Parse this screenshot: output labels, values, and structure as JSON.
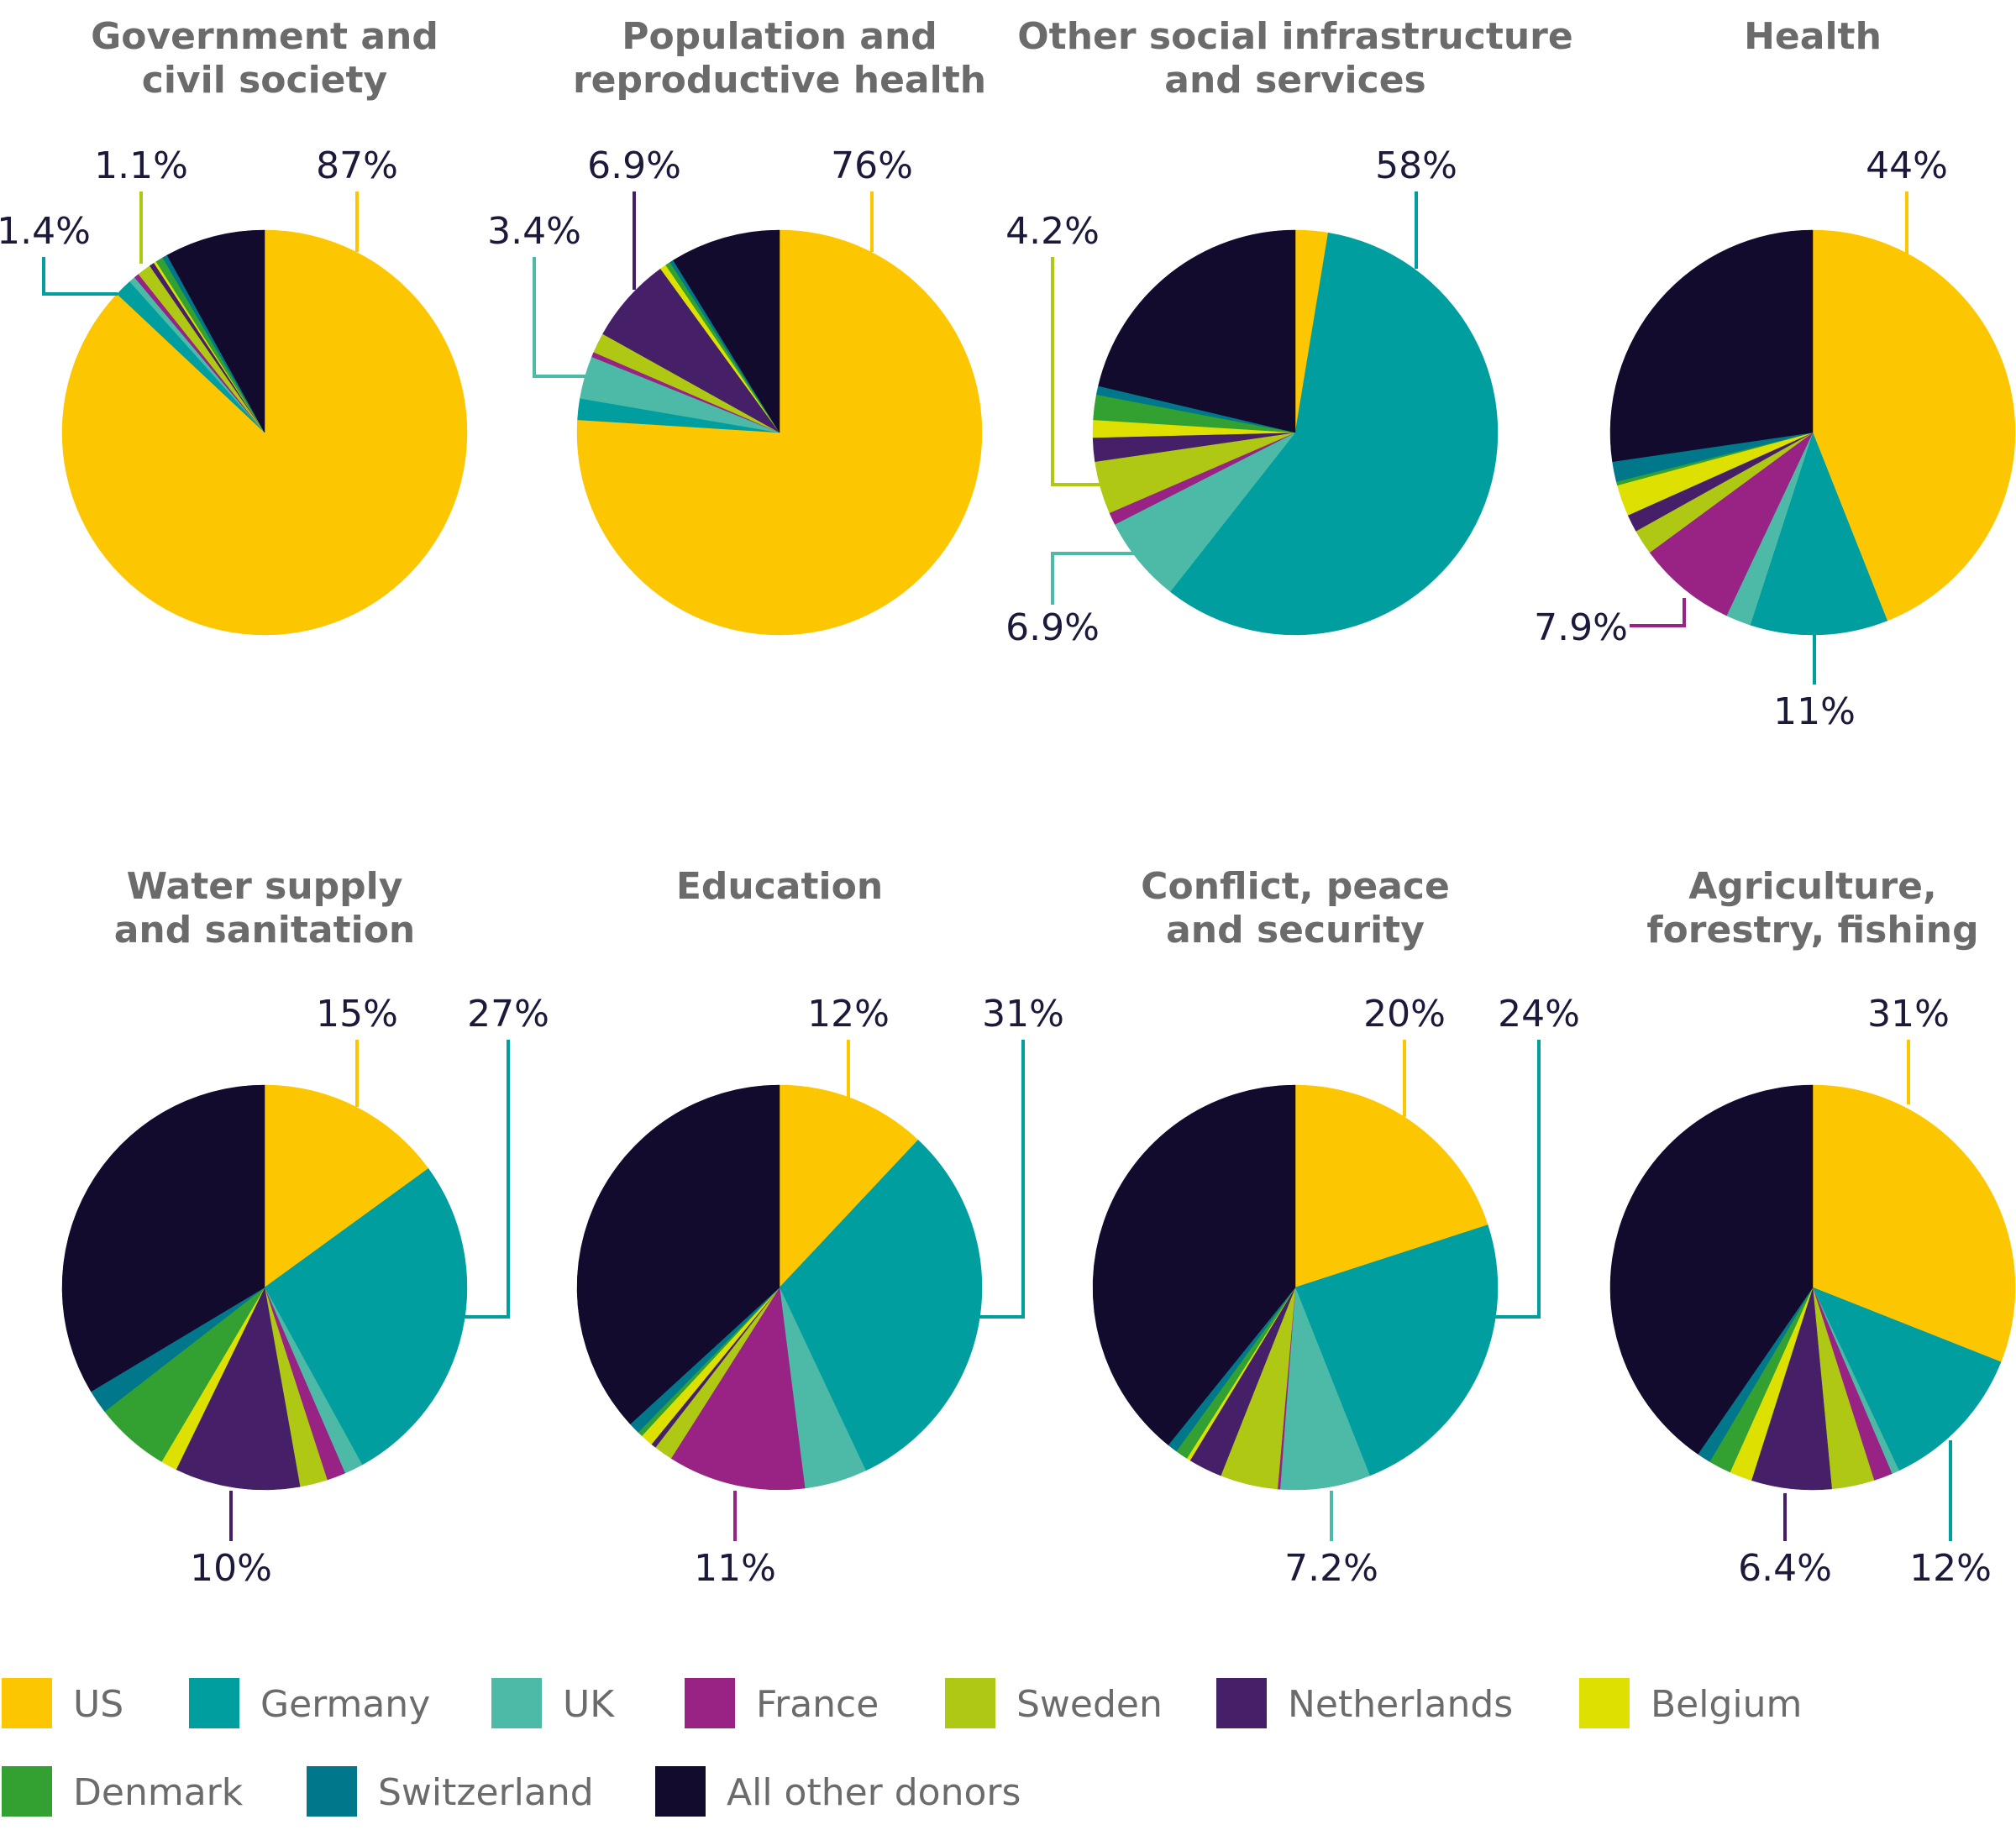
{
  "legend": [
    {
      "name": "US",
      "color": "#fcc600"
    },
    {
      "name": "Germany",
      "color": "#009e9f"
    },
    {
      "name": "UK",
      "color": "#4dbaa7"
    },
    {
      "name": "France",
      "color": "#982384"
    },
    {
      "name": "Sweden",
      "color": "#afc813"
    },
    {
      "name": "Netherlands",
      "color": "#452069"
    },
    {
      "name": "Belgium",
      "color": "#dde000"
    },
    {
      "name": "Denmark",
      "color": "#32a132"
    },
    {
      "name": "Switzerland",
      "color": "#00778a"
    },
    {
      "name": "All other donors",
      "color": "#120b2e"
    }
  ],
  "chart_data": [
    {
      "type": "pie",
      "title": [
        "Government and",
        "civil society"
      ],
      "slices": [
        {
          "donor": "US",
          "value": 87,
          "label": "87%"
        },
        {
          "donor": "Germany",
          "value": 1.4,
          "label": "1.4%"
        },
        {
          "donor": "UK",
          "value": 0.5
        },
        {
          "donor": "France",
          "value": 0.4
        },
        {
          "donor": "Sweden",
          "value": 1.1,
          "label": "1.1%"
        },
        {
          "donor": "Netherlands",
          "value": 0.4
        },
        {
          "donor": "Belgium",
          "value": 0.2
        },
        {
          "donor": "Denmark",
          "value": 0.6
        },
        {
          "donor": "Switzerland",
          "value": 0.4
        },
        {
          "donor": "All other donors",
          "value": 8.0
        }
      ]
    },
    {
      "type": "pie",
      "title": [
        "Population and",
        "reproductive health"
      ],
      "slices": [
        {
          "donor": "US",
          "value": 76,
          "label": "76%"
        },
        {
          "donor": "Germany",
          "value": 1.7
        },
        {
          "donor": "UK",
          "value": 3.4,
          "label": "3.4%"
        },
        {
          "donor": "France",
          "value": 0.4
        },
        {
          "donor": "Sweden",
          "value": 1.6
        },
        {
          "donor": "Netherlands",
          "value": 6.9,
          "label": "6.9%"
        },
        {
          "donor": "Belgium",
          "value": 0.5
        },
        {
          "donor": "Denmark",
          "value": 0.4
        },
        {
          "donor": "Switzerland",
          "value": 0.3
        },
        {
          "donor": "All other donors",
          "value": 8.8
        }
      ]
    },
    {
      "type": "pie",
      "title": [
        "Other social infrastructure",
        "and services"
      ],
      "slices": [
        {
          "donor": "US",
          "value": 2.6
        },
        {
          "donor": "Germany",
          "value": 58,
          "label": "58%"
        },
        {
          "donor": "UK",
          "value": 6.9,
          "label": "6.9%"
        },
        {
          "donor": "France",
          "value": 1.0
        },
        {
          "donor": "Sweden",
          "value": 4.2,
          "label": "4.2%"
        },
        {
          "donor": "Netherlands",
          "value": 1.9
        },
        {
          "donor": "Belgium",
          "value": 1.4
        },
        {
          "donor": "Denmark",
          "value": 2.0
        },
        {
          "donor": "Switzerland",
          "value": 0.7
        },
        {
          "donor": "All other donors",
          "value": 21.3
        }
      ]
    },
    {
      "type": "pie",
      "title": [
        "Health"
      ],
      "slices": [
        {
          "donor": "US",
          "value": 44,
          "label": "44%"
        },
        {
          "donor": "Germany",
          "value": 11,
          "label": "11%"
        },
        {
          "donor": "UK",
          "value": 2.0
        },
        {
          "donor": "France",
          "value": 7.9,
          "label": "7.9%"
        },
        {
          "donor": "Sweden",
          "value": 2.0
        },
        {
          "donor": "Netherlands",
          "value": 1.4
        },
        {
          "donor": "Belgium",
          "value": 2.5
        },
        {
          "donor": "Denmark",
          "value": 0.3
        },
        {
          "donor": "Switzerland",
          "value": 1.6
        },
        {
          "donor": "All other donors",
          "value": 27.3
        }
      ]
    },
    {
      "type": "pie",
      "title": [
        "Water supply",
        "and sanitation"
      ],
      "slices": [
        {
          "donor": "US",
          "value": 15,
          "label": "15%"
        },
        {
          "donor": "Germany",
          "value": 27,
          "label": "27%"
        },
        {
          "donor": "UK",
          "value": 1.5
        },
        {
          "donor": "France",
          "value": 1.5
        },
        {
          "donor": "Sweden",
          "value": 2.2
        },
        {
          "donor": "Netherlands",
          "value": 10,
          "label": "10%"
        },
        {
          "donor": "Belgium",
          "value": 1.3
        },
        {
          "donor": "Denmark",
          "value": 6.0
        },
        {
          "donor": "Switzerland",
          "value": 1.9
        },
        {
          "donor": "All other donors",
          "value": 33.6
        }
      ]
    },
    {
      "type": "pie",
      "title": [
        "Education"
      ],
      "slices": [
        {
          "donor": "US",
          "value": 12,
          "label": "12%"
        },
        {
          "donor": "Germany",
          "value": 31,
          "label": "31%"
        },
        {
          "donor": "UK",
          "value": 5.0
        },
        {
          "donor": "France",
          "value": 11,
          "label": "11%"
        },
        {
          "donor": "Sweden",
          "value": 1.5
        },
        {
          "donor": "Netherlands",
          "value": 0.4
        },
        {
          "donor": "Belgium",
          "value": 1.0
        },
        {
          "donor": "Denmark",
          "value": 0.4
        },
        {
          "donor": "Switzerland",
          "value": 0.9
        },
        {
          "donor": "All other donors",
          "value": 36.8
        }
      ]
    },
    {
      "type": "pie",
      "title": [
        "Conflict, peace",
        "and security"
      ],
      "slices": [
        {
          "donor": "US",
          "value": 20,
          "label": "20%"
        },
        {
          "donor": "Germany",
          "value": 24,
          "label": "24%"
        },
        {
          "donor": "UK",
          "value": 7.2,
          "label": "7.2%"
        },
        {
          "donor": "France",
          "value": 0.2
        },
        {
          "donor": "Sweden",
          "value": 4.6
        },
        {
          "donor": "Netherlands",
          "value": 2.7
        },
        {
          "donor": "Belgium",
          "value": 0.3
        },
        {
          "donor": "Denmark",
          "value": 1.0
        },
        {
          "donor": "Switzerland",
          "value": 0.8
        },
        {
          "donor": "All other donors",
          "value": 39.2
        }
      ]
    },
    {
      "type": "pie",
      "title": [
        "Agriculture,",
        "forestry, fishing"
      ],
      "slices": [
        {
          "donor": "US",
          "value": 31,
          "label": "31%"
        },
        {
          "donor": "Germany",
          "value": 12,
          "label": "12%"
        },
        {
          "donor": "UK",
          "value": 0.6
        },
        {
          "donor": "France",
          "value": 1.5
        },
        {
          "donor": "Sweden",
          "value": 3.4
        },
        {
          "donor": "Netherlands",
          "value": 6.4,
          "label": "6.4%"
        },
        {
          "donor": "Belgium",
          "value": 1.8
        },
        {
          "donor": "Denmark",
          "value": 1.8
        },
        {
          "donor": "Switzerland",
          "value": 1.1
        },
        {
          "donor": "All other donors",
          "value": 40.4
        }
      ]
    }
  ]
}
